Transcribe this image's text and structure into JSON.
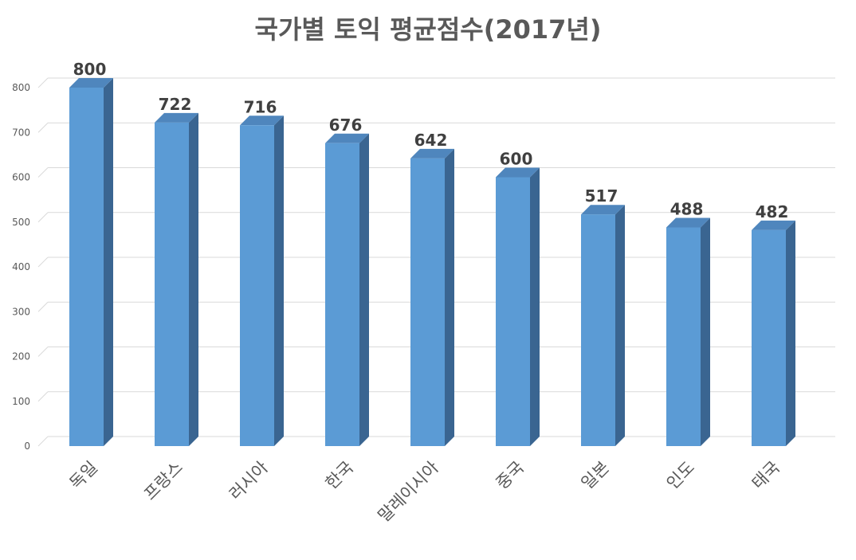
{
  "chart_data": {
    "type": "bar",
    "title": "국가별 토익 평균점수(2017년)",
    "categories": [
      "독일",
      "프랑스",
      "러시아",
      "한국",
      "말레이시아",
      "중국",
      "일본",
      "인도",
      "태국"
    ],
    "values": [
      800,
      722,
      716,
      676,
      642,
      600,
      517,
      488,
      482
    ],
    "y_ticks": [
      0,
      100,
      200,
      300,
      400,
      500,
      600,
      700,
      800
    ],
    "ylim": [
      0,
      800
    ],
    "grid": true,
    "legend": "none",
    "style": "3d-column",
    "colors": {
      "bar_front": "#5b9bd5",
      "bar_side": "#3a6591",
      "bar_top": "#4f86bd",
      "grid": "#d9d9d9",
      "text": "#595959",
      "data_label": "#404040"
    }
  }
}
